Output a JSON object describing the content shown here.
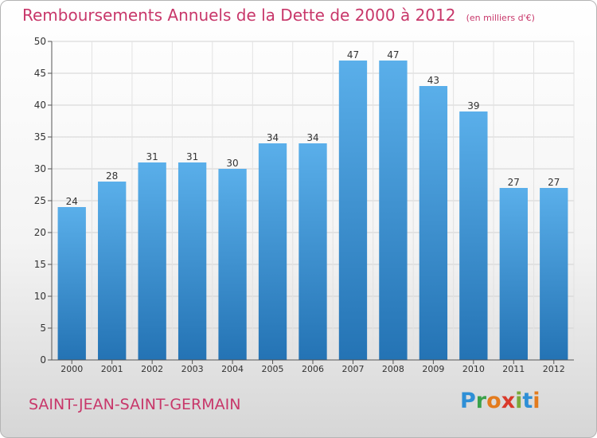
{
  "header": {
    "title": "Remboursements Annuels de la Dette de 2000 à 2012",
    "subtitle": "(en milliers d'€)"
  },
  "footer": {
    "city": "SAINT-JEAN-SAINT-GERMAIN",
    "logo_text": "Proxiti"
  },
  "colors": {
    "title": "#c8376a",
    "bar_top": "#5aafea",
    "bar_bottom": "#2473b4"
  },
  "chart_data": {
    "type": "bar",
    "title": "Remboursements Annuels de la Dette de 2000 à 2012",
    "subtitle": "(en milliers d'€)",
    "categories": [
      "2000",
      "2001",
      "2002",
      "2003",
      "2004",
      "2005",
      "2006",
      "2007",
      "2008",
      "2009",
      "2010",
      "2011",
      "2012"
    ],
    "values": [
      24,
      28,
      31,
      31,
      30,
      34,
      34,
      47,
      47,
      43,
      39,
      27,
      27
    ],
    "ylim": [
      0,
      50
    ],
    "yticks": [
      0,
      5,
      10,
      15,
      20,
      25,
      30,
      35,
      40,
      45,
      50
    ],
    "grid": true,
    "legend": "none"
  }
}
